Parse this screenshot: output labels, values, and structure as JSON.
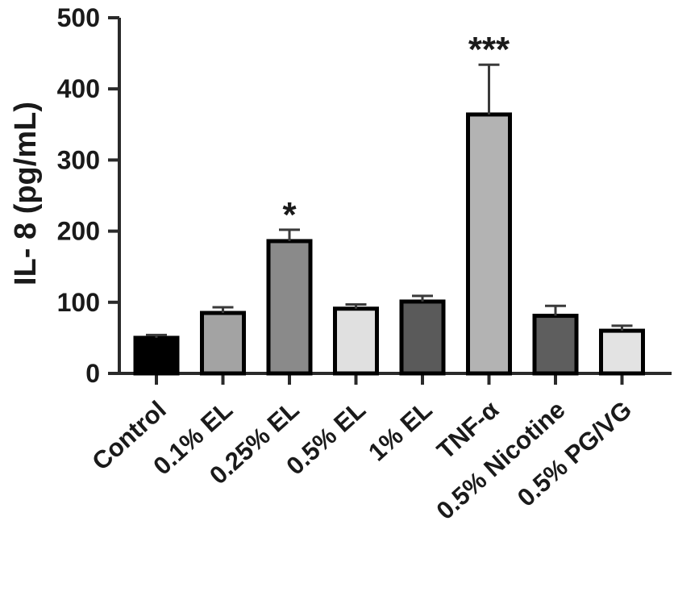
{
  "chart_data": {
    "type": "bar",
    "title": "",
    "xlabel": "",
    "ylabel": "IL- 8 (pg/mL)",
    "ylim": [
      0,
      500
    ],
    "yticks": [
      0,
      100,
      200,
      300,
      400,
      500
    ],
    "categories": [
      "Control",
      "0.1% EL",
      "0.25% EL",
      "0.5% EL",
      "1% EL",
      "TNF-α",
      "0.5% Nicotine",
      "0.5% PG/VG"
    ],
    "values": [
      50,
      85,
      186,
      91,
      101,
      364,
      81,
      60
    ],
    "errors": [
      4,
      8,
      16,
      6,
      8,
      70,
      14,
      7
    ],
    "significance": [
      "",
      "",
      "*",
      "",
      "",
      "***",
      "",
      ""
    ],
    "bar_colors": [
      "#000000",
      "#a3a3a3",
      "#8a8a8a",
      "#e0e0e0",
      "#5a5a5a",
      "#b3b3b3",
      "#5e5e5e",
      "#e3e3e3"
    ],
    "grid": false,
    "legend": "none"
  }
}
